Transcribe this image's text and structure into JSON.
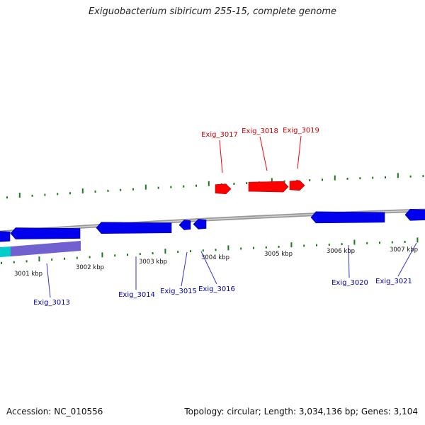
{
  "title": "Exiguobacterium sibiricum 255-15, complete genome",
  "footer": {
    "accession": "Accession: NC_010556",
    "summary": "Topology: circular; Length: 3,034,136 bp; Genes: 3,104"
  },
  "colors": {
    "forward_gene": "#ff0000",
    "reverse_gene": "#0000ee",
    "tick": "#1a7a1a",
    "backbone": "#8a8a8a",
    "forward_label": "#cc0000",
    "reverse_label": "#0000aa",
    "rrna": "#00cccc",
    "region": "#7060d0"
  },
  "scale_labels": [
    "3001 kbp",
    "3002 kbp",
    "3003 kbp",
    "3004 kbp",
    "3005 kbp",
    "3006 kbp",
    "3007 kbp"
  ],
  "forward_genes": [
    {
      "label": "Exig_3017"
    },
    {
      "label": "Exig_3018"
    },
    {
      "label": "Exig_3019"
    }
  ],
  "reverse_genes": [
    {
      "label": "Exig_3013"
    },
    {
      "label": "Exig_3014"
    },
    {
      "label": "Exig_3015"
    },
    {
      "label": "Exig_3016"
    },
    {
      "label": "Exig_3020"
    },
    {
      "label": "Exig_3021"
    }
  ]
}
